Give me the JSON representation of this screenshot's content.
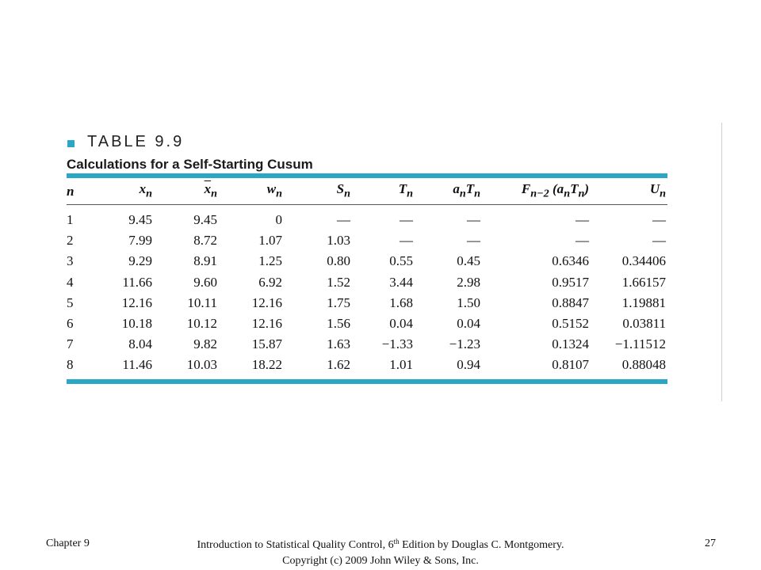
{
  "table": {
    "label": "TABLE 9.9",
    "title": "Calculations for a Self-Starting Cusum",
    "rows": [
      [
        "1",
        "9.45",
        "9.45",
        "0",
        "—",
        "—",
        "—",
        "—",
        "—"
      ],
      [
        "2",
        "7.99",
        "8.72",
        "1.07",
        "1.03",
        "—",
        "—",
        "—",
        "—"
      ],
      [
        "3",
        "9.29",
        "8.91",
        "1.25",
        "0.80",
        "0.55",
        "0.45",
        "0.6346",
        "0.34406"
      ],
      [
        "4",
        "11.66",
        "9.60",
        "6.92",
        "1.52",
        "3.44",
        "2.98",
        "0.9517",
        "1.66157"
      ],
      [
        "5",
        "12.16",
        "10.11",
        "12.16",
        "1.75",
        "1.68",
        "1.50",
        "0.8847",
        "1.19881"
      ],
      [
        "6",
        "10.18",
        "10.12",
        "12.16",
        "1.56",
        "0.04",
        "0.04",
        "0.5152",
        "0.03811"
      ],
      [
        "7",
        "8.04",
        "9.82",
        "15.87",
        "1.63",
        "−1.33",
        "−1.23",
        "0.1324",
        "−1.11512"
      ],
      [
        "8",
        "11.46",
        "10.03",
        "18.22",
        "1.62",
        "1.01",
        "0.94",
        "0.8107",
        "0.88048"
      ]
    ]
  },
  "footer": {
    "chapter": "Chapter 9",
    "credit_line1_a": "Introduction to Statistical Quality Control, 6",
    "credit_line1_sup": "th",
    "credit_line1_b": " Edition by Douglas C. Montgomery.",
    "credit_line2": "Copyright (c) 2009 John Wiley & Sons, Inc.",
    "page_number": "27"
  },
  "colors": {
    "accent": "#2aa7c6"
  }
}
